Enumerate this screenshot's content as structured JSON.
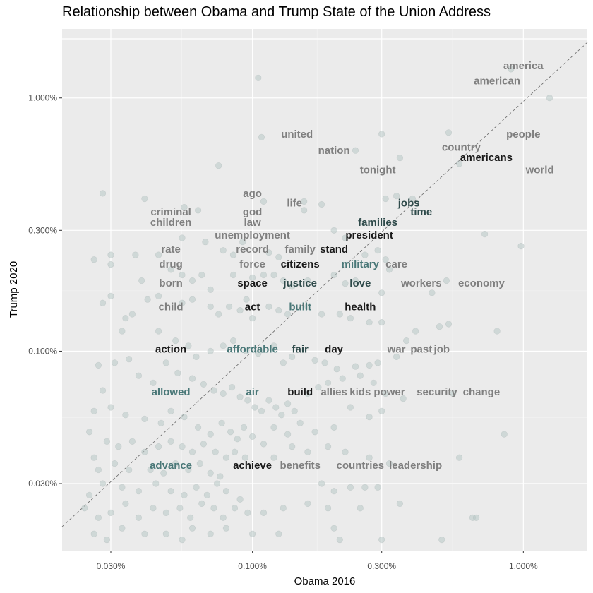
{
  "chart_data": {
    "type": "scatter",
    "title": "Relationship between Obama and Trump State of the Union Address",
    "xlabel": "Obama 2016",
    "ylabel": "Trump 2020",
    "x_scale": "log10",
    "y_scale": "log10",
    "xlim": [
      0.018,
      1.6
    ],
    "ylim": [
      0.013,
      1.6
    ],
    "x_ticks": [
      0.03,
      0.1,
      0.3,
      1.0
    ],
    "x_tick_labels": [
      "0.030%",
      "0.100%",
      "0.300%",
      "1.000%"
    ],
    "y_ticks": [
      0.03,
      0.1,
      0.3,
      1.0
    ],
    "y_tick_labels": [
      "0.030%",
      "0.100%",
      "0.300%",
      "1.000%"
    ],
    "reference_line": "y = x (dashed)",
    "colors": {
      "panel_background": "#ebebeb",
      "grid": "#ffffff",
      "label_gray": "#7f7f7f",
      "label_dark": "#1a1a1a",
      "label_darkteal": "#2e4a4a",
      "label_teal": "#4a7878",
      "point_fill": "#b8c8c6"
    },
    "labels": [
      {
        "word": "america",
        "x": 1.0,
        "y": 1.34,
        "color": "#7f7f7f"
      },
      {
        "word": "american",
        "x": 0.8,
        "y": 1.17,
        "color": "#7f7f7f"
      },
      {
        "word": "people",
        "x": 1.0,
        "y": 0.72,
        "color": "#7f7f7f"
      },
      {
        "word": "united",
        "x": 0.146,
        "y": 0.72,
        "color": "#7f7f7f"
      },
      {
        "word": "country",
        "x": 0.59,
        "y": 0.64,
        "color": "#7f7f7f"
      },
      {
        "word": "nation",
        "x": 0.2,
        "y": 0.62,
        "color": "#7f7f7f"
      },
      {
        "word": "americans",
        "x": 0.73,
        "y": 0.582,
        "color": "#1a1a1a"
      },
      {
        "word": "tonight",
        "x": 0.29,
        "y": 0.52,
        "color": "#7f7f7f"
      },
      {
        "word": "world",
        "x": 1.15,
        "y": 0.52,
        "color": "#7f7f7f"
      },
      {
        "word": "ago",
        "x": 0.1,
        "y": 0.42,
        "color": "#7f7f7f"
      },
      {
        "word": "life",
        "x": 0.143,
        "y": 0.385,
        "color": "#7f7f7f"
      },
      {
        "word": "jobs",
        "x": 0.378,
        "y": 0.385,
        "color": "#2e4a4a"
      },
      {
        "word": "criminal",
        "x": 0.05,
        "y": 0.355,
        "color": "#7f7f7f"
      },
      {
        "word": "god",
        "x": 0.1,
        "y": 0.355,
        "color": "#7f7f7f"
      },
      {
        "word": "time",
        "x": 0.42,
        "y": 0.355,
        "color": "#2e4a4a"
      },
      {
        "word": "children",
        "x": 0.05,
        "y": 0.323,
        "color": "#7f7f7f"
      },
      {
        "word": "law",
        "x": 0.1,
        "y": 0.323,
        "color": "#7f7f7f"
      },
      {
        "word": "families",
        "x": 0.29,
        "y": 0.323,
        "color": "#2e4a4a"
      },
      {
        "word": "unemployment",
        "x": 0.1,
        "y": 0.287,
        "color": "#7f7f7f"
      },
      {
        "word": "president",
        "x": 0.27,
        "y": 0.287,
        "color": "#1a1a1a"
      },
      {
        "word": "rate",
        "x": 0.05,
        "y": 0.253,
        "color": "#7f7f7f"
      },
      {
        "word": "record",
        "x": 0.1,
        "y": 0.253,
        "color": "#7f7f7f"
      },
      {
        "word": "family",
        "x": 0.15,
        "y": 0.253,
        "color": "#7f7f7f"
      },
      {
        "word": "stand",
        "x": 0.2,
        "y": 0.253,
        "color": "#1a1a1a"
      },
      {
        "word": "drug",
        "x": 0.05,
        "y": 0.221,
        "color": "#7f7f7f"
      },
      {
        "word": "force",
        "x": 0.1,
        "y": 0.221,
        "color": "#7f7f7f"
      },
      {
        "word": "citizens",
        "x": 0.15,
        "y": 0.221,
        "color": "#1a1a1a"
      },
      {
        "word": "military",
        "x": 0.25,
        "y": 0.221,
        "color": "#4a7878"
      },
      {
        "word": "care",
        "x": 0.34,
        "y": 0.221,
        "color": "#7f7f7f"
      },
      {
        "word": "born",
        "x": 0.05,
        "y": 0.186,
        "color": "#7f7f7f"
      },
      {
        "word": "space",
        "x": 0.1,
        "y": 0.186,
        "color": "#1a1a1a"
      },
      {
        "word": "justice",
        "x": 0.15,
        "y": 0.186,
        "color": "#2e4a4a"
      },
      {
        "word": "love",
        "x": 0.25,
        "y": 0.186,
        "color": "#2e4a4a"
      },
      {
        "word": "workers",
        "x": 0.42,
        "y": 0.186,
        "color": "#7f7f7f"
      },
      {
        "word": "economy",
        "x": 0.7,
        "y": 0.186,
        "color": "#7f7f7f"
      },
      {
        "word": "child",
        "x": 0.05,
        "y": 0.15,
        "color": "#7f7f7f"
      },
      {
        "word": "act",
        "x": 0.1,
        "y": 0.15,
        "color": "#1a1a1a"
      },
      {
        "word": "built",
        "x": 0.15,
        "y": 0.15,
        "color": "#4a7878"
      },
      {
        "word": "health",
        "x": 0.25,
        "y": 0.15,
        "color": "#1a1a1a"
      },
      {
        "word": "action",
        "x": 0.05,
        "y": 0.102,
        "color": "#1a1a1a"
      },
      {
        "word": "affordable",
        "x": 0.1,
        "y": 0.102,
        "color": "#4a7878"
      },
      {
        "word": "fair",
        "x": 0.15,
        "y": 0.102,
        "color": "#2e4a4a"
      },
      {
        "word": "day",
        "x": 0.2,
        "y": 0.102,
        "color": "#1a1a1a"
      },
      {
        "word": "war",
        "x": 0.34,
        "y": 0.102,
        "color": "#7f7f7f"
      },
      {
        "word": "past",
        "x": 0.42,
        "y": 0.102,
        "color": "#7f7f7f"
      },
      {
        "word": "job",
        "x": 0.5,
        "y": 0.102,
        "color": "#7f7f7f"
      },
      {
        "word": "allowed",
        "x": 0.05,
        "y": 0.069,
        "color": "#4a7878"
      },
      {
        "word": "air",
        "x": 0.1,
        "y": 0.069,
        "color": "#4a7878"
      },
      {
        "word": "build",
        "x": 0.15,
        "y": 0.069,
        "color": "#1a1a1a"
      },
      {
        "word": "allies",
        "x": 0.2,
        "y": 0.069,
        "color": "#7f7f7f"
      },
      {
        "word": "kids",
        "x": 0.25,
        "y": 0.069,
        "color": "#7f7f7f"
      },
      {
        "word": "power",
        "x": 0.32,
        "y": 0.069,
        "color": "#7f7f7f"
      },
      {
        "word": "security",
        "x": 0.48,
        "y": 0.069,
        "color": "#7f7f7f"
      },
      {
        "word": "change",
        "x": 0.7,
        "y": 0.069,
        "color": "#7f7f7f"
      },
      {
        "word": "advance",
        "x": 0.05,
        "y": 0.0355,
        "color": "#4a7878"
      },
      {
        "word": "achieve",
        "x": 0.1,
        "y": 0.0355,
        "color": "#1a1a1a"
      },
      {
        "word": "benefits",
        "x": 0.15,
        "y": 0.0355,
        "color": "#7f7f7f"
      },
      {
        "word": "countries",
        "x": 0.25,
        "y": 0.0355,
        "color": "#7f7f7f"
      },
      {
        "word": "leadership",
        "x": 0.4,
        "y": 0.0355,
        "color": "#7f7f7f"
      }
    ],
    "points": [
      [
        1.25,
        1.0
      ],
      [
        0.9,
        1.3
      ],
      [
        0.53,
        0.73
      ],
      [
        0.58,
        0.55
      ],
      [
        0.24,
        0.62
      ],
      [
        0.35,
        0.58
      ],
      [
        0.3,
        0.72
      ],
      [
        0.105,
        1.2
      ],
      [
        0.108,
        0.7
      ],
      [
        0.075,
        0.54
      ],
      [
        0.028,
        0.42
      ],
      [
        0.04,
        0.4
      ],
      [
        0.056,
        0.37
      ],
      [
        0.063,
        0.36
      ],
      [
        0.11,
        0.39
      ],
      [
        0.155,
        0.36
      ],
      [
        0.31,
        0.4
      ],
      [
        0.34,
        0.41
      ],
      [
        0.39,
        0.4
      ],
      [
        0.155,
        0.39
      ],
      [
        0.18,
        0.38
      ],
      [
        0.055,
        0.28
      ],
      [
        0.067,
        0.27
      ],
      [
        0.078,
        0.25
      ],
      [
        0.085,
        0.24
      ],
      [
        0.092,
        0.27
      ],
      [
        0.115,
        0.245
      ],
      [
        0.125,
        0.235
      ],
      [
        0.2,
        0.3
      ],
      [
        0.22,
        0.28
      ],
      [
        0.26,
        0.24
      ],
      [
        0.29,
        0.25
      ],
      [
        0.31,
        0.23
      ],
      [
        0.32,
        0.21
      ],
      [
        0.72,
        0.29
      ],
      [
        0.98,
        0.26
      ],
      [
        0.037,
        0.24
      ],
      [
        0.045,
        0.24
      ],
      [
        0.03,
        0.24
      ],
      [
        0.026,
        0.23
      ],
      [
        0.03,
        0.22
      ],
      [
        0.05,
        0.21
      ],
      [
        0.055,
        0.2
      ],
      [
        0.06,
        0.19
      ],
      [
        0.065,
        0.2
      ],
      [
        0.07,
        0.175
      ],
      [
        0.085,
        0.2
      ],
      [
        0.1,
        0.195
      ],
      [
        0.11,
        0.2
      ],
      [
        0.12,
        0.2
      ],
      [
        0.13,
        0.19
      ],
      [
        0.14,
        0.18
      ],
      [
        0.16,
        0.19
      ],
      [
        0.2,
        0.2
      ],
      [
        0.22,
        0.185
      ],
      [
        0.24,
        0.19
      ],
      [
        0.3,
        0.17
      ],
      [
        0.52,
        0.19
      ],
      [
        0.46,
        0.17
      ],
      [
        0.039,
        0.19
      ],
      [
        0.03,
        0.165
      ],
      [
        0.028,
        0.155
      ],
      [
        0.034,
        0.135
      ],
      [
        0.036,
        0.14
      ],
      [
        0.041,
        0.16
      ],
      [
        0.045,
        0.165
      ],
      [
        0.055,
        0.155
      ],
      [
        0.06,
        0.16
      ],
      [
        0.07,
        0.15
      ],
      [
        0.075,
        0.14
      ],
      [
        0.082,
        0.15
      ],
      [
        0.09,
        0.145
      ],
      [
        0.095,
        0.16
      ],
      [
        0.1,
        0.135
      ],
      [
        0.115,
        0.15
      ],
      [
        0.125,
        0.145
      ],
      [
        0.135,
        0.14
      ],
      [
        0.16,
        0.15
      ],
      [
        0.18,
        0.14
      ],
      [
        0.21,
        0.14
      ],
      [
        0.23,
        0.135
      ],
      [
        0.27,
        0.13
      ],
      [
        0.3,
        0.13
      ],
      [
        0.4,
        0.12
      ],
      [
        0.49,
        0.125
      ],
      [
        0.53,
        0.128
      ],
      [
        0.8,
        0.12
      ],
      [
        0.033,
        0.12
      ],
      [
        0.045,
        0.12
      ],
      [
        0.052,
        0.11
      ],
      [
        0.058,
        0.105
      ],
      [
        0.062,
        0.095
      ],
      [
        0.07,
        0.1
      ],
      [
        0.078,
        0.105
      ],
      [
        0.085,
        0.11
      ],
      [
        0.095,
        0.1
      ],
      [
        0.105,
        0.098
      ],
      [
        0.12,
        0.105
      ],
      [
        0.13,
        0.09
      ],
      [
        0.14,
        0.095
      ],
      [
        0.17,
        0.092
      ],
      [
        0.185,
        0.09
      ],
      [
        0.205,
        0.085
      ],
      [
        0.24,
        0.087
      ],
      [
        0.27,
        0.088
      ],
      [
        0.29,
        0.09
      ],
      [
        0.34,
        0.095
      ],
      [
        0.37,
        0.11
      ],
      [
        0.027,
        0.088
      ],
      [
        0.031,
        0.09
      ],
      [
        0.035,
        0.093
      ],
      [
        0.038,
        0.08
      ],
      [
        0.043,
        0.075
      ],
      [
        0.048,
        0.09
      ],
      [
        0.053,
        0.082
      ],
      [
        0.06,
        0.078
      ],
      [
        0.066,
        0.074
      ],
      [
        0.072,
        0.07
      ],
      [
        0.078,
        0.068
      ],
      [
        0.084,
        0.072
      ],
      [
        0.09,
        0.066
      ],
      [
        0.096,
        0.064
      ],
      [
        0.102,
        0.06
      ],
      [
        0.108,
        0.058
      ],
      [
        0.115,
        0.064
      ],
      [
        0.122,
        0.06
      ],
      [
        0.128,
        0.056
      ],
      [
        0.135,
        0.062
      ],
      [
        0.143,
        0.058
      ],
      [
        0.16,
        0.068
      ],
      [
        0.175,
        0.072
      ],
      [
        0.19,
        0.075
      ],
      [
        0.215,
        0.078
      ],
      [
        0.25,
        0.08
      ],
      [
        0.28,
        0.075
      ],
      [
        0.31,
        0.068
      ],
      [
        0.36,
        0.065
      ],
      [
        0.55,
        0.068
      ],
      [
        0.028,
        0.07
      ],
      [
        0.026,
        0.058
      ],
      [
        0.03,
        0.06
      ],
      [
        0.034,
        0.056
      ],
      [
        0.04,
        0.054
      ],
      [
        0.046,
        0.052
      ],
      [
        0.05,
        0.058
      ],
      [
        0.056,
        0.055
      ],
      [
        0.063,
        0.05
      ],
      [
        0.07,
        0.047
      ],
      [
        0.077,
        0.052
      ],
      [
        0.083,
        0.048
      ],
      [
        0.088,
        0.045
      ],
      [
        0.093,
        0.05
      ],
      [
        0.1,
        0.046
      ],
      [
        0.11,
        0.043
      ],
      [
        0.12,
        0.05
      ],
      [
        0.135,
        0.047
      ],
      [
        0.15,
        0.052
      ],
      [
        0.17,
        0.048
      ],
      [
        0.2,
        0.05
      ],
      [
        0.23,
        0.06
      ],
      [
        0.27,
        0.055
      ],
      [
        0.3,
        0.058
      ],
      [
        0.85,
        0.047
      ],
      [
        0.025,
        0.048
      ],
      [
        0.029,
        0.044
      ],
      [
        0.032,
        0.042
      ],
      [
        0.036,
        0.044
      ],
      [
        0.04,
        0.04
      ],
      [
        0.045,
        0.042
      ],
      [
        0.05,
        0.044
      ],
      [
        0.055,
        0.042
      ],
      [
        0.06,
        0.04
      ],
      [
        0.066,
        0.043
      ],
      [
        0.073,
        0.04
      ],
      [
        0.08,
        0.038
      ],
      [
        0.086,
        0.04
      ],
      [
        0.094,
        0.038
      ],
      [
        0.12,
        0.038
      ],
      [
        0.14,
        0.042
      ],
      [
        0.16,
        0.04
      ],
      [
        0.19,
        0.042
      ],
      [
        0.22,
        0.04
      ],
      [
        0.026,
        0.038
      ],
      [
        0.031,
        0.036
      ],
      [
        0.035,
        0.034
      ],
      [
        0.027,
        0.034
      ],
      [
        0.042,
        0.034
      ],
      [
        0.047,
        0.033
      ],
      [
        0.052,
        0.036
      ],
      [
        0.058,
        0.034
      ],
      [
        0.064,
        0.036
      ],
      [
        0.07,
        0.033
      ],
      [
        0.076,
        0.032
      ],
      [
        0.27,
        0.038
      ],
      [
        0.32,
        0.036
      ],
      [
        0.58,
        0.038
      ],
      [
        0.028,
        0.03
      ],
      [
        0.025,
        0.027
      ],
      [
        0.033,
        0.029
      ],
      [
        0.038,
        0.028
      ],
      [
        0.044,
        0.03
      ],
      [
        0.05,
        0.028
      ],
      [
        0.056,
        0.027
      ],
      [
        0.062,
        0.029
      ],
      [
        0.068,
        0.027
      ],
      [
        0.074,
        0.03
      ],
      [
        0.08,
        0.028
      ],
      [
        0.09,
        0.026
      ],
      [
        0.18,
        0.03
      ],
      [
        0.2,
        0.028
      ],
      [
        0.23,
        0.029
      ],
      [
        0.26,
        0.029
      ],
      [
        0.29,
        0.029
      ],
      [
        0.024,
        0.024
      ],
      [
        0.027,
        0.022
      ],
      [
        0.03,
        0.023
      ],
      [
        0.034,
        0.025
      ],
      [
        0.038,
        0.022
      ],
      [
        0.043,
        0.024
      ],
      [
        0.048,
        0.023
      ],
      [
        0.054,
        0.024
      ],
      [
        0.059,
        0.022
      ],
      [
        0.065,
        0.025
      ],
      [
        0.072,
        0.024
      ],
      [
        0.078,
        0.022
      ],
      [
        0.086,
        0.024
      ],
      [
        0.096,
        0.023
      ],
      [
        0.11,
        0.023
      ],
      [
        0.13,
        0.024
      ],
      [
        0.16,
        0.025
      ],
      [
        0.19,
        0.024
      ],
      [
        0.25,
        0.024
      ],
      [
        0.35,
        0.025
      ],
      [
        0.65,
        0.022
      ],
      [
        0.67,
        0.022
      ],
      [
        0.026,
        0.019
      ],
      [
        0.029,
        0.018
      ],
      [
        0.033,
        0.02
      ],
      [
        0.04,
        0.019
      ],
      [
        0.048,
        0.019
      ],
      [
        0.055,
        0.018
      ],
      [
        0.06,
        0.02
      ],
      [
        0.07,
        0.019
      ],
      [
        0.08,
        0.02
      ],
      [
        0.1,
        0.019
      ],
      [
        0.125,
        0.019
      ],
      [
        0.2,
        0.02
      ],
      [
        0.21,
        0.018
      ],
      [
        0.3,
        0.018
      ],
      [
        0.5,
        0.018
      ]
    ]
  }
}
